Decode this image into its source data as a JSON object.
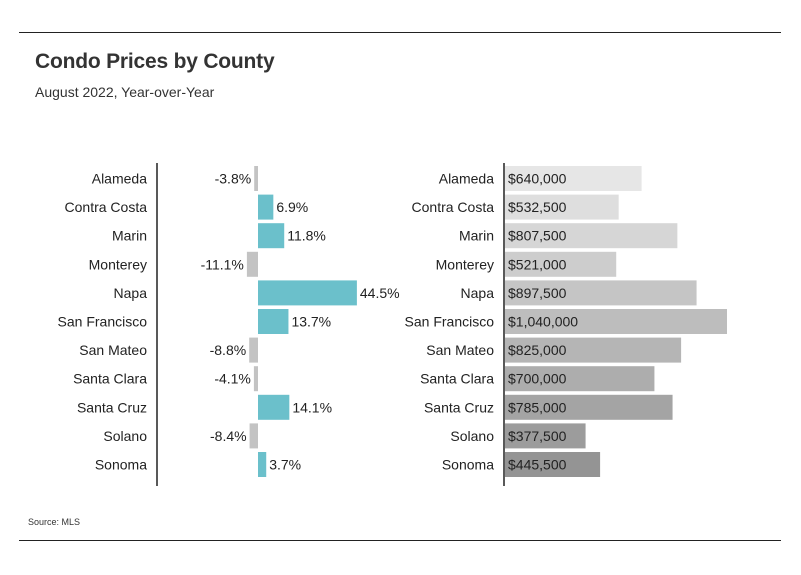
{
  "header": {
    "title": "Condo Prices by County",
    "subtitle": "August 2022, Year-over-Year"
  },
  "footer": {
    "source": "Source:  MLS"
  },
  "colors": {
    "positive": "#6bc0cb",
    "negative": "#c3c3c3",
    "price_light": "#e6e6e6",
    "price_dark": "#949494",
    "axis": "#222222"
  },
  "chart_data": [
    {
      "type": "bar",
      "orientation": "horizontal",
      "categories": [
        "Alameda",
        "Contra Costa",
        "Marin",
        "Monterey",
        "Napa",
        "San Francisco",
        "San Mateo",
        "Santa Clara",
        "Santa Cruz",
        "Solano",
        "Sonoma"
      ],
      "values": [
        -3.8,
        6.9,
        11.8,
        -11.1,
        44.5,
        13.7,
        -8.8,
        -4.1,
        14.1,
        -8.4,
        3.7
      ],
      "labels": [
        "-3.8%",
        "6.9%",
        "11.8%",
        "-11.1%",
        "44.5%",
        "13.7%",
        "-8.8%",
        "-4.1%",
        "14.1%",
        "-8.4%",
        "3.7%"
      ],
      "xlim": [
        -40,
        45
      ]
    },
    {
      "type": "bar",
      "orientation": "horizontal",
      "categories": [
        "Alameda",
        "Contra Costa",
        "Marin",
        "Monterey",
        "Napa",
        "San Francisco",
        "San Mateo",
        "Santa Clara",
        "Santa Cruz",
        "Solano",
        "Sonoma"
      ],
      "values": [
        640000,
        532500,
        807500,
        521000,
        897500,
        1040000,
        825000,
        700000,
        785000,
        377500,
        445500
      ],
      "labels": [
        "$640,000",
        "$532,500",
        "$807,500",
        "$521,000",
        "$897,500",
        "$1,040,000",
        "$825,000",
        "$700,000",
        "$785,000",
        "$377,500",
        "$445,500"
      ],
      "xlim": [
        0,
        1040000
      ]
    }
  ]
}
